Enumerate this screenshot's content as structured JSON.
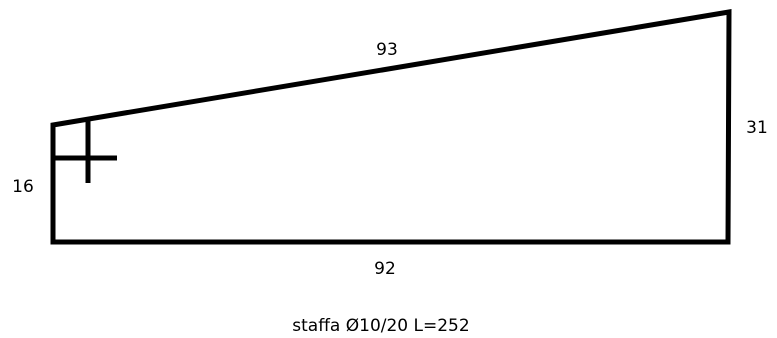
{
  "diagram": {
    "labels": {
      "top": "93",
      "right": "31",
      "left": "16",
      "bottom": "92"
    },
    "caption": "staffa Ø10/20 L=252",
    "stroke_color": "#000000"
  }
}
